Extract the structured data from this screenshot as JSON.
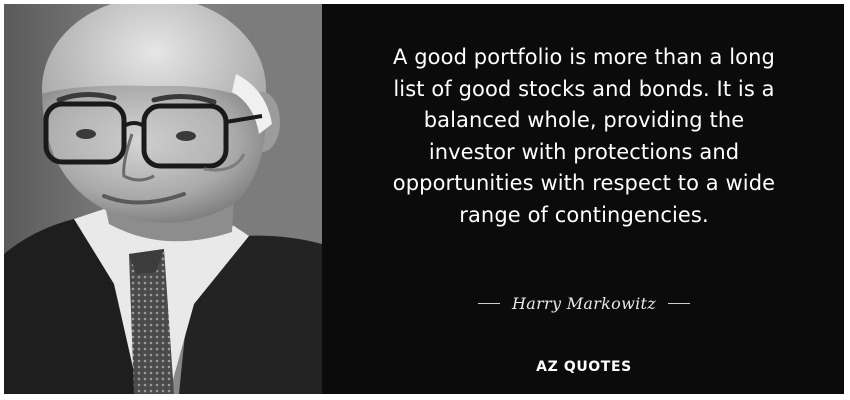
{
  "quote": {
    "lines": [
      "A good portfolio is more than a long",
      "list of good stocks and bonds. It is a",
      "balanced whole, providing the",
      "investor with protections and",
      "opportunities with respect to a wide",
      "range of contingencies."
    ]
  },
  "author": {
    "name": "Harry Markowitz"
  },
  "brand": {
    "name": "AZ QUOTES"
  },
  "colors": {
    "background": "#0b0b0b",
    "border": "#ffffff",
    "text": "#ffffff"
  }
}
